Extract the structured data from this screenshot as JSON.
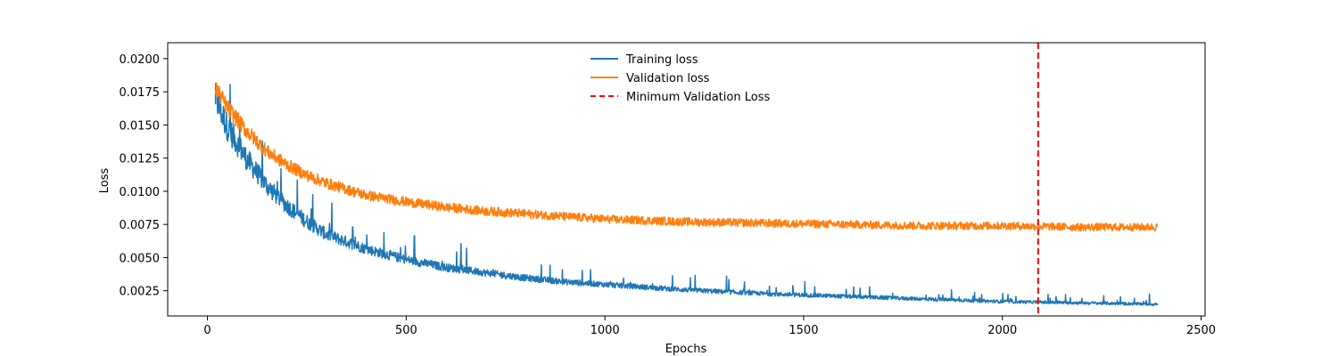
{
  "chart_data": {
    "type": "line",
    "title": "",
    "xlabel": "Epochs",
    "ylabel": "Loss",
    "xlim": [
      -100,
      2510
    ],
    "ylim": [
      0.0006,
      0.0212
    ],
    "xticks": [
      0,
      500,
      1000,
      1500,
      2000,
      2500
    ],
    "xtick_labels": [
      "0",
      "500",
      "1000",
      "1500",
      "2000",
      "2500"
    ],
    "yticks": [
      0.0025,
      0.005,
      0.0075,
      0.01,
      0.0125,
      0.015,
      0.0175,
      0.02
    ],
    "ytick_labels": [
      "0.0025",
      "0.0050",
      "0.0075",
      "0.0100",
      "0.0125",
      "0.0150",
      "0.0175",
      "0.0200"
    ],
    "grid": false,
    "legend_position": "top-center",
    "series": [
      {
        "name": "Training loss",
        "color": "#1f77b4",
        "style": "solid",
        "x": [
          20,
          50,
          100,
          150,
          200,
          250,
          300,
          400,
          500,
          600,
          700,
          800,
          900,
          1000,
          1200,
          1400,
          1600,
          1800,
          2000,
          2200,
          2390
        ],
        "y": [
          0.0172,
          0.015,
          0.0125,
          0.0105,
          0.009,
          0.0078,
          0.0068,
          0.0057,
          0.0049,
          0.0043,
          0.0039,
          0.0035,
          0.0032,
          0.003,
          0.0026,
          0.0023,
          0.0021,
          0.0019,
          0.0017,
          0.0016,
          0.0015
        ]
      },
      {
        "name": "Validation loss",
        "color": "#ff7f0e",
        "style": "solid",
        "x": [
          20,
          50,
          100,
          150,
          200,
          250,
          300,
          400,
          500,
          600,
          700,
          800,
          900,
          1000,
          1200,
          1400,
          1600,
          1800,
          2000,
          2200,
          2390
        ],
        "y": [
          0.0178,
          0.0163,
          0.0145,
          0.013,
          0.012,
          0.0112,
          0.0106,
          0.0097,
          0.0092,
          0.0088,
          0.0085,
          0.0083,
          0.0081,
          0.0079,
          0.0077,
          0.0076,
          0.0075,
          0.0074,
          0.0074,
          0.0073,
          0.0073
        ]
      },
      {
        "name": "Minimum Validation Loss",
        "color": "#ff0000",
        "style": "dashed",
        "type": "vline",
        "x": 2090
      }
    ]
  }
}
